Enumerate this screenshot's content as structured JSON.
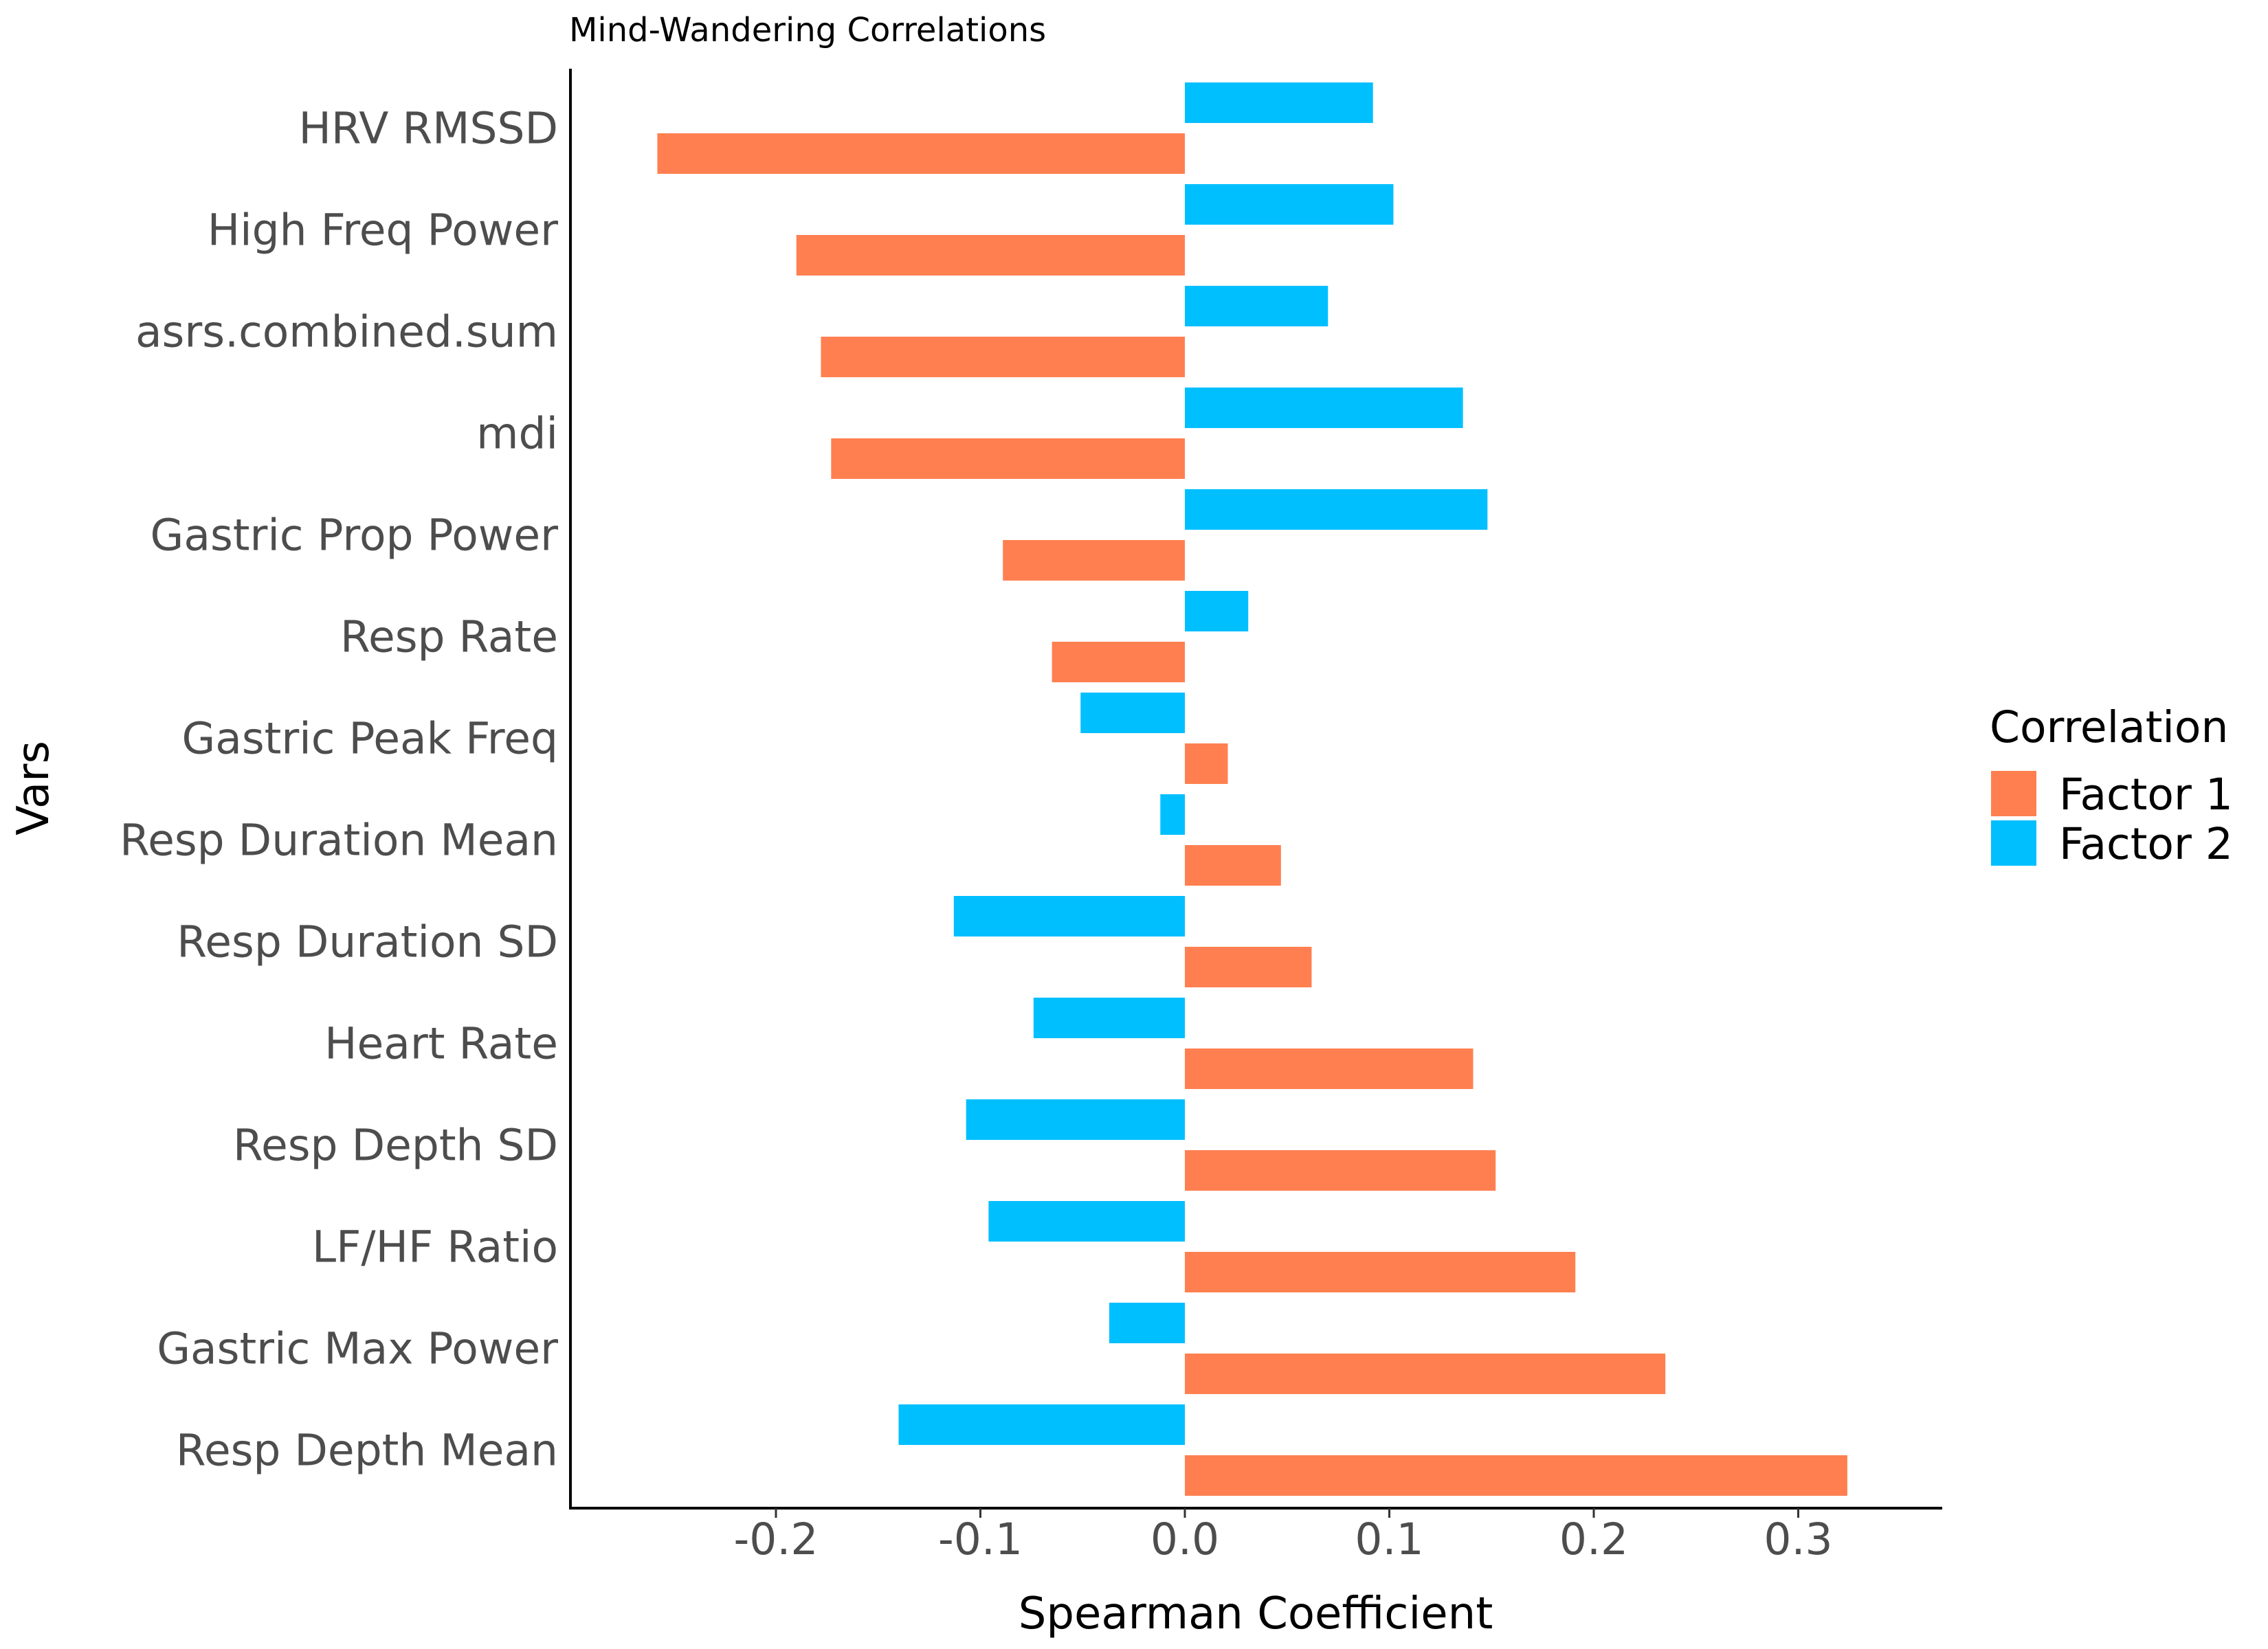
{
  "chart_data": {
    "type": "bar",
    "orientation": "horizontal",
    "title": "Mind-Wandering Correlations",
    "xlabel": "Spearman Coefficient",
    "ylabel": "Vars",
    "xlim": [
      -0.285,
      0.35
    ],
    "xticks": [
      -0.2,
      -0.1,
      0.0,
      0.1,
      0.2,
      0.3
    ],
    "xtick_labels": [
      "-0.2",
      "-0.1",
      "0.0",
      "0.1",
      "0.2",
      "0.3"
    ],
    "grid": false,
    "legend_title": "Correlation",
    "legend_position": "right",
    "categories": [
      "HRV RMSSD",
      "High Freq Power",
      "asrs.combined.sum",
      "mdi",
      "Gastric Prop Power",
      "Resp Rate",
      "Gastric Peak Freq",
      "Resp Duration Mean",
      "Resp Duration SD",
      "Heart Rate",
      "Resp Depth SD",
      "LF/HF Ratio",
      "Gastric Max Power",
      "Resp Depth Mean"
    ],
    "series": [
      {
        "name": "Factor 1",
        "color": "#FF7F50",
        "values": [
          -0.258,
          -0.19,
          -0.178,
          -0.173,
          -0.089,
          -0.065,
          0.021,
          0.047,
          0.062,
          0.141,
          0.152,
          0.191,
          0.235,
          0.324
        ]
      },
      {
        "name": "Factor 2",
        "color": "#00BFFF",
        "values": [
          0.092,
          0.102,
          0.07,
          0.136,
          0.148,
          0.031,
          -0.051,
          -0.012,
          -0.113,
          -0.074,
          -0.107,
          -0.096,
          -0.037,
          -0.14
        ]
      }
    ]
  }
}
